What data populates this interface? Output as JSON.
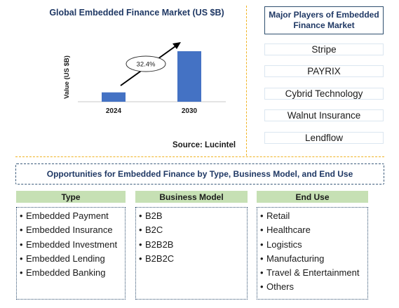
{
  "chart_data": {
    "type": "bar",
    "title": "Global Embedded Finance Market (US $B)",
    "ylabel": "Value (US $B)",
    "categories": [
      "2024",
      "2030"
    ],
    "values": [
      1,
      5.4
    ],
    "annotation": "32.4%",
    "source": "Source: Lucintel",
    "colors": {
      "bar": "#4472c4",
      "title": "#1f3864"
    }
  },
  "players": {
    "title": "Major Players of Embedded Finance Market",
    "items": [
      "Stripe",
      "PAYRIX",
      "Cybrid Technology",
      "Walnut Insurance",
      "Lendflow"
    ]
  },
  "opportunities": {
    "title": "Opportunities for Embedded Finance by Type, Business Model, and End Use",
    "columns": [
      {
        "header": "Type",
        "items": [
          "Embedded Payment",
          "Embedded Insurance",
          "Embedded Investment",
          "Embedded Lending",
          "Embedded Banking"
        ]
      },
      {
        "header": "Business Model",
        "items": [
          "B2B",
          "B2C",
          "B2B2B",
          "B2B2C"
        ]
      },
      {
        "header": "End Use",
        "items": [
          "Retail",
          "Healthcare",
          "Logistics",
          "Manufacturing",
          "Travel & Entertainment",
          "Others"
        ]
      }
    ],
    "header_color": "#c6e0b4"
  }
}
